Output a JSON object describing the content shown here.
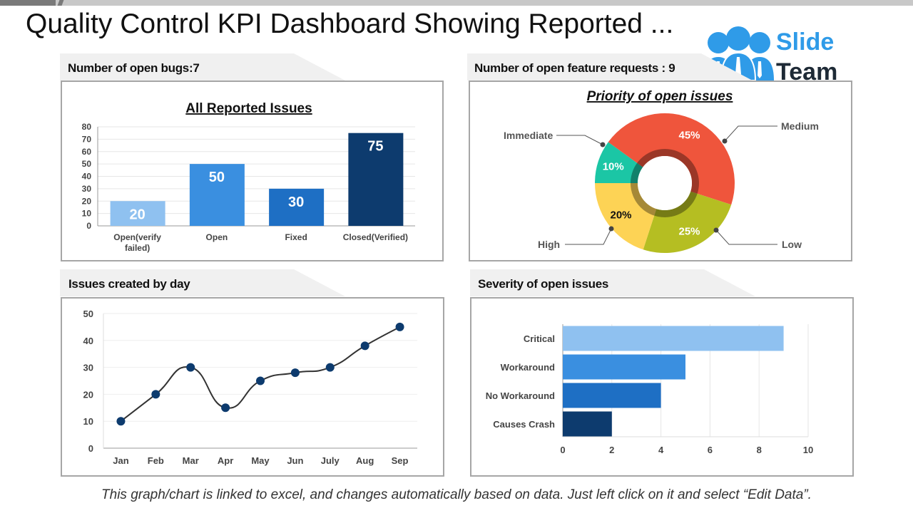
{
  "title": "Quality Control KPI Dashboard Showing Reported ...",
  "logo": {
    "line1": "Slide",
    "line2": "Team"
  },
  "footer": "This graph/chart is linked to excel, and changes automatically based on data. Just left click on it and select “Edit Data”.",
  "panels": {
    "bugs": "Number of open bugs:7",
    "features": "Number of open feature requests : 9",
    "by_day": "Issues created by day",
    "severity": "Severity of open issues"
  },
  "chart_data": [
    {
      "type": "bar",
      "title": "All Reported Issues",
      "categories": [
        "Open(verify failed)",
        "Open",
        "Fixed",
        "Closed(Verified)"
      ],
      "values": [
        20,
        50,
        30,
        75
      ],
      "ylim": [
        0,
        80
      ],
      "yticks": [
        0,
        10,
        20,
        30,
        40,
        50,
        60,
        70,
        80
      ],
      "colors": [
        "#8fc1f0",
        "#3a8fe0",
        "#1e6fc4",
        "#0d3b6e"
      ],
      "data_labels": true,
      "grid": true
    },
    {
      "type": "pie",
      "title": "Priority of open issues",
      "donut": true,
      "categories": [
        "Immediate",
        "Medium",
        "Low",
        "High"
      ],
      "values": [
        10,
        45,
        25,
        20
      ],
      "labels": [
        "10%",
        "45%",
        "25%",
        "20%"
      ],
      "colors": [
        "#1bc6a5",
        "#ef553c",
        "#b5be22",
        "#fdd355"
      ]
    },
    {
      "type": "line",
      "categories": [
        "Jan",
        "Feb",
        "Mar",
        "Apr",
        "May",
        "Jun",
        "July",
        "Aug",
        "Sep"
      ],
      "values": [
        10,
        20,
        30,
        15,
        25,
        28,
        30,
        38,
        45
      ],
      "ylim": [
        0,
        50
      ],
      "yticks": [
        0,
        10,
        20,
        30,
        40,
        50
      ],
      "smooth": true,
      "grid": true,
      "marker_color": "#0d3b6e"
    },
    {
      "type": "bar",
      "orientation": "horizontal",
      "categories": [
        "Critical",
        "Workaround",
        "No Workaround",
        "Causes Crash"
      ],
      "values": [
        9,
        5,
        4,
        2
      ],
      "xlim": [
        0,
        10
      ],
      "xticks": [
        0,
        2,
        4,
        6,
        8,
        10
      ],
      "colors": [
        "#8fc1f0",
        "#3a8fe0",
        "#1e6fc4",
        "#0d3b6e"
      ],
      "grid": true
    }
  ]
}
